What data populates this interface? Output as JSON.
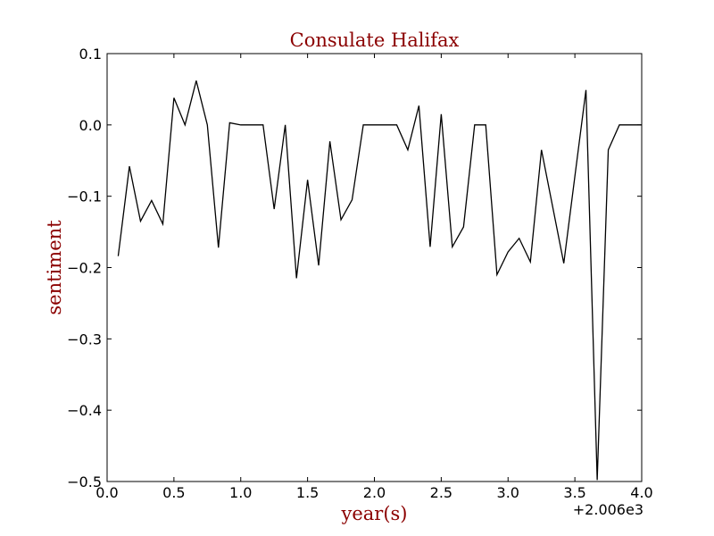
{
  "colors": {
    "label": "#8b0000",
    "line": "#000000",
    "background": "#ffffff"
  },
  "chart_data": {
    "type": "line",
    "title": "Consulate Halifax",
    "xlabel": "year(s)",
    "ylabel": "sentiment",
    "x_offset_label": "+2.006e3",
    "xlim": [
      0.0,
      4.0
    ],
    "ylim": [
      -0.5,
      0.1
    ],
    "x_ticks": [
      0.0,
      0.5,
      1.0,
      1.5,
      2.0,
      2.5,
      3.0,
      3.5,
      4.0
    ],
    "x_tick_labels": [
      "0.0",
      "0.5",
      "1.0",
      "1.5",
      "2.0",
      "2.5",
      "3.0",
      "3.5",
      "4.0"
    ],
    "y_ticks": [
      -0.5,
      -0.4,
      -0.3,
      -0.2,
      -0.1,
      0.0,
      0.1
    ],
    "y_tick_labels": [
      "−0.5",
      "−0.4",
      "−0.3",
      "−0.2",
      "−0.1",
      "0.0",
      "0.1"
    ],
    "grid": false,
    "series": [
      {
        "x": [
          0.083,
          0.167,
          0.25,
          0.333,
          0.417,
          0.5,
          0.583,
          0.667,
          0.75,
          0.833,
          0.917,
          1.0,
          1.083,
          1.167,
          1.25,
          1.333,
          1.417,
          1.5,
          1.583,
          1.667,
          1.75,
          1.833,
          1.917,
          2.0,
          2.083,
          2.167,
          2.25,
          2.333,
          2.417,
          2.5,
          2.583,
          2.667,
          2.75,
          2.833,
          2.917,
          3.0,
          3.083,
          3.167,
          3.25,
          3.333,
          3.417,
          3.5,
          3.583,
          3.667,
          3.75,
          3.833,
          3.917,
          4.0
        ],
        "values": [
          -0.184,
          -0.058,
          -0.135,
          -0.106,
          -0.139,
          0.038,
          0.0,
          0.062,
          0.0,
          -0.172,
          0.003,
          0.0,
          0.0,
          0.0,
          -0.118,
          0.0,
          -0.215,
          -0.077,
          -0.197,
          -0.023,
          -0.133,
          -0.105,
          0.0,
          0.0,
          0.0,
          0.0,
          -0.035,
          0.027,
          -0.171,
          0.015,
          -0.171,
          -0.143,
          0.0,
          0.0,
          -0.21,
          -0.178,
          -0.159,
          -0.192,
          -0.035,
          -0.114,
          -0.194,
          -0.072,
          0.049,
          -0.498,
          -0.035,
          0.0,
          0.0,
          0.0
        ]
      }
    ]
  }
}
